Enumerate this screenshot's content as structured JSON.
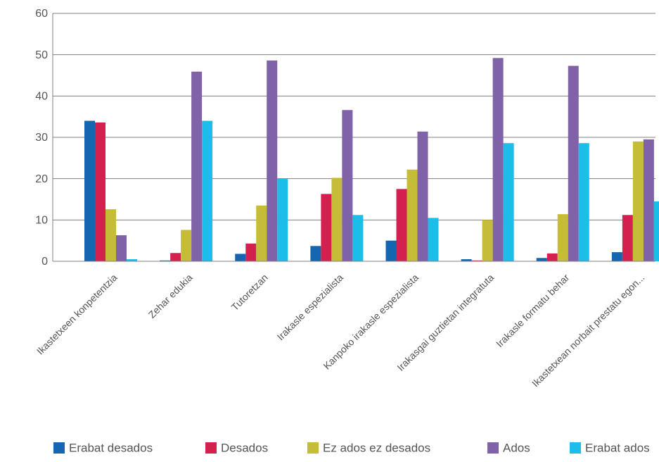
{
  "chart_data": {
    "type": "bar",
    "title": "",
    "xlabel": "",
    "ylabel": "",
    "ylim": [
      0,
      60
    ],
    "yticks": [
      0,
      10,
      20,
      30,
      40,
      50,
      60
    ],
    "grid": true,
    "legend_position": "bottom",
    "categories": [
      "Ikastetxeen konpetentzia",
      "Zehar edukia",
      "Tutoretzan",
      "Irakasle espezialista",
      "Kanpoko irakasle espezialista",
      "Irakasgai guztietan integratuta",
      "Irakasle formatu behar",
      "Ikastetxean norbait prestatu egon..."
    ],
    "series": [
      {
        "name": "Erabat desados",
        "color": "#1565b0",
        "values": [
          34,
          0.2,
          1.8,
          3.7,
          5,
          0.5,
          0.8,
          2.2
        ]
      },
      {
        "name": "Desados",
        "color": "#d4204f",
        "values": [
          33.6,
          2,
          4.3,
          16.3,
          17.5,
          0.2,
          1.9,
          11.2
        ]
      },
      {
        "name": "Ez ados ez desados",
        "color": "#c5bd37",
        "values": [
          12.6,
          7.6,
          13.5,
          20.2,
          22.2,
          10,
          11.4,
          29
        ]
      },
      {
        "name": "Ados",
        "color": "#7f62a8",
        "values": [
          6.3,
          45.9,
          48.6,
          36.6,
          31.4,
          49.2,
          47.3,
          29.5
        ]
      },
      {
        "name": "Erabat ados",
        "color": "#1cbde9",
        "values": [
          0.5,
          34,
          20,
          11.2,
          10.5,
          28.6,
          28.6,
          14.5
        ]
      }
    ]
  }
}
